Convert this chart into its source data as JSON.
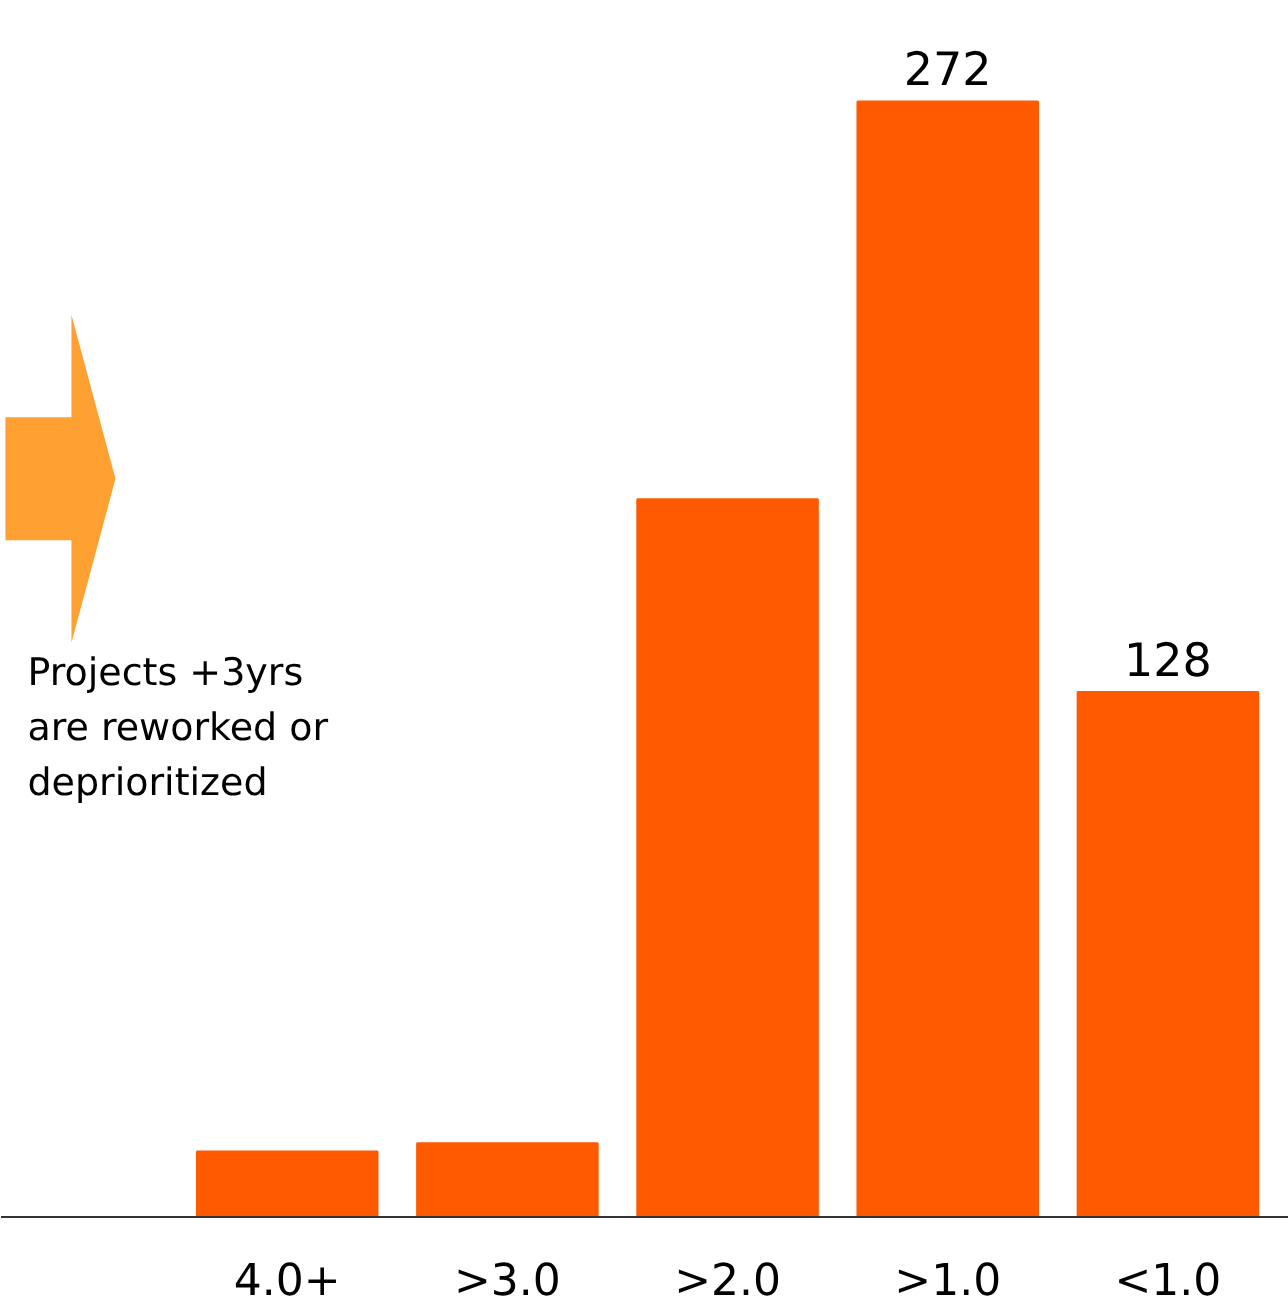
{
  "chart_data": {
    "type": "bar",
    "categories": [
      "4.0+",
      ">3.0",
      ">2.0",
      ">1.0",
      "<1.0"
    ],
    "values": [
      16,
      18,
      175,
      272,
      128
    ],
    "color": "#ff5a00",
    "value_labels": [
      null,
      null,
      null,
      "272",
      "128"
    ],
    "annotations": [
      "Projects +3yrs\nare reworked or\ndeprioritized"
    ]
  }
}
